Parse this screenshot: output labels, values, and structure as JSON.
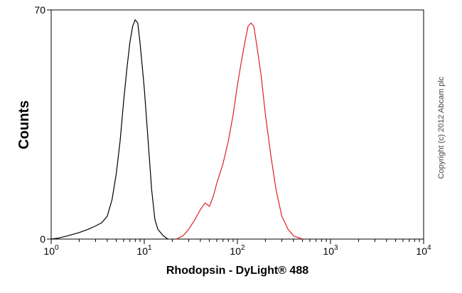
{
  "chart_data": {
    "type": "line",
    "xlabel": "Rhodopsin - DyLight® 488",
    "ylabel": "Counts",
    "x_scale": "log",
    "xlim": [
      1,
      10000
    ],
    "ylim": [
      0,
      70
    ],
    "x_ticks": [
      {
        "value": 1,
        "base": "10",
        "exp": "0"
      },
      {
        "value": 10,
        "base": "10",
        "exp": "1"
      },
      {
        "value": 100,
        "base": "10",
        "exp": "2"
      },
      {
        "value": 1000,
        "base": "10",
        "exp": "3"
      },
      {
        "value": 10000,
        "base": "10",
        "exp": "4"
      }
    ],
    "y_ticks": [
      {
        "value": 0,
        "label": "0"
      },
      {
        "value": 70,
        "label": "70"
      }
    ],
    "grid": false,
    "series": [
      {
        "color": "#000000",
        "points": [
          [
            1.0,
            0
          ],
          [
            1.2,
            0.3
          ],
          [
            1.5,
            1
          ],
          [
            2.0,
            2
          ],
          [
            2.5,
            3
          ],
          [
            3.0,
            4
          ],
          [
            3.5,
            5
          ],
          [
            4.0,
            7
          ],
          [
            4.5,
            12
          ],
          [
            5.0,
            20
          ],
          [
            5.5,
            30
          ],
          [
            6.0,
            42
          ],
          [
            6.5,
            52
          ],
          [
            7.0,
            60
          ],
          [
            7.5,
            65
          ],
          [
            8.0,
            67
          ],
          [
            8.5,
            66
          ],
          [
            9.0,
            60
          ],
          [
            10.0,
            46
          ],
          [
            11.0,
            30
          ],
          [
            12.0,
            15
          ],
          [
            13.0,
            6
          ],
          [
            14.0,
            3
          ],
          [
            16.0,
            1
          ],
          [
            18.0,
            0
          ]
        ]
      },
      {
        "color": "#e02020",
        "points": [
          [
            22,
            0
          ],
          [
            26,
            1
          ],
          [
            30,
            3
          ],
          [
            35,
            6
          ],
          [
            40,
            9
          ],
          [
            45,
            11
          ],
          [
            50,
            10
          ],
          [
            55,
            13
          ],
          [
            60,
            17
          ],
          [
            70,
            23
          ],
          [
            80,
            30
          ],
          [
            90,
            38
          ],
          [
            100,
            47
          ],
          [
            110,
            54
          ],
          [
            120,
            60
          ],
          [
            130,
            65
          ],
          [
            140,
            66
          ],
          [
            150,
            65
          ],
          [
            160,
            60
          ],
          [
            180,
            50
          ],
          [
            200,
            38
          ],
          [
            230,
            25
          ],
          [
            260,
            15
          ],
          [
            300,
            7
          ],
          [
            350,
            3
          ],
          [
            400,
            1
          ],
          [
            500,
            0
          ]
        ]
      }
    ]
  },
  "copyright": "Copyright (c) 2012 Abcam plc"
}
